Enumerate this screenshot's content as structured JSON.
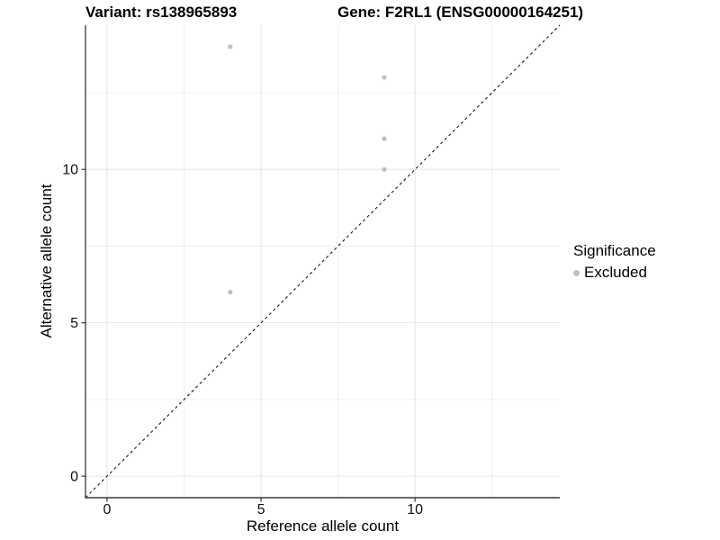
{
  "titles": {
    "left": "Variant: rs138965893",
    "right": "Gene: F2RL1 (ENSG00000164251)"
  },
  "axes": {
    "x": {
      "label": "Reference allele count",
      "ticks": [
        0,
        5,
        10
      ],
      "minor_ticks": [
        2.5,
        7.5,
        12.5
      ],
      "range": [
        -0.7,
        14.7
      ]
    },
    "y": {
      "label": "Alternative allele count",
      "ticks": [
        0,
        5,
        10
      ],
      "minor_ticks": [
        2.5,
        7.5,
        12.5
      ],
      "range": [
        -0.7,
        14.7
      ]
    }
  },
  "legend": {
    "title": "Significance",
    "items": [
      {
        "label": "Excluded",
        "color": "#bfbfbf"
      }
    ]
  },
  "chart_data": {
    "type": "scatter",
    "title": "Variant: rs138965893 — Gene: F2RL1 (ENSG00000164251)",
    "xlabel": "Reference allele count",
    "ylabel": "Alternative allele count",
    "xlim": [
      -0.7,
      14.7
    ],
    "ylim": [
      -0.7,
      14.7
    ],
    "grid": true,
    "legend_position": "right",
    "series": [
      {
        "name": "Excluded",
        "color": "#bfbfbf",
        "points": [
          {
            "x": 4,
            "y": 14
          },
          {
            "x": 9,
            "y": 13
          },
          {
            "x": 9,
            "y": 11
          },
          {
            "x": 9,
            "y": 10
          },
          {
            "x": 4,
            "y": 6
          }
        ]
      }
    ],
    "reference_line": {
      "type": "abline",
      "slope": 1,
      "intercept": 0,
      "style": "dashed",
      "color": "#1a1a1a"
    }
  },
  "colors": {
    "background": "#ffffff",
    "grid_major": "#e4e4e4",
    "grid_minor": "#f0f0f0",
    "axis_line": "#383838",
    "tick_text": "#111111",
    "point": "#bfbfbf"
  }
}
